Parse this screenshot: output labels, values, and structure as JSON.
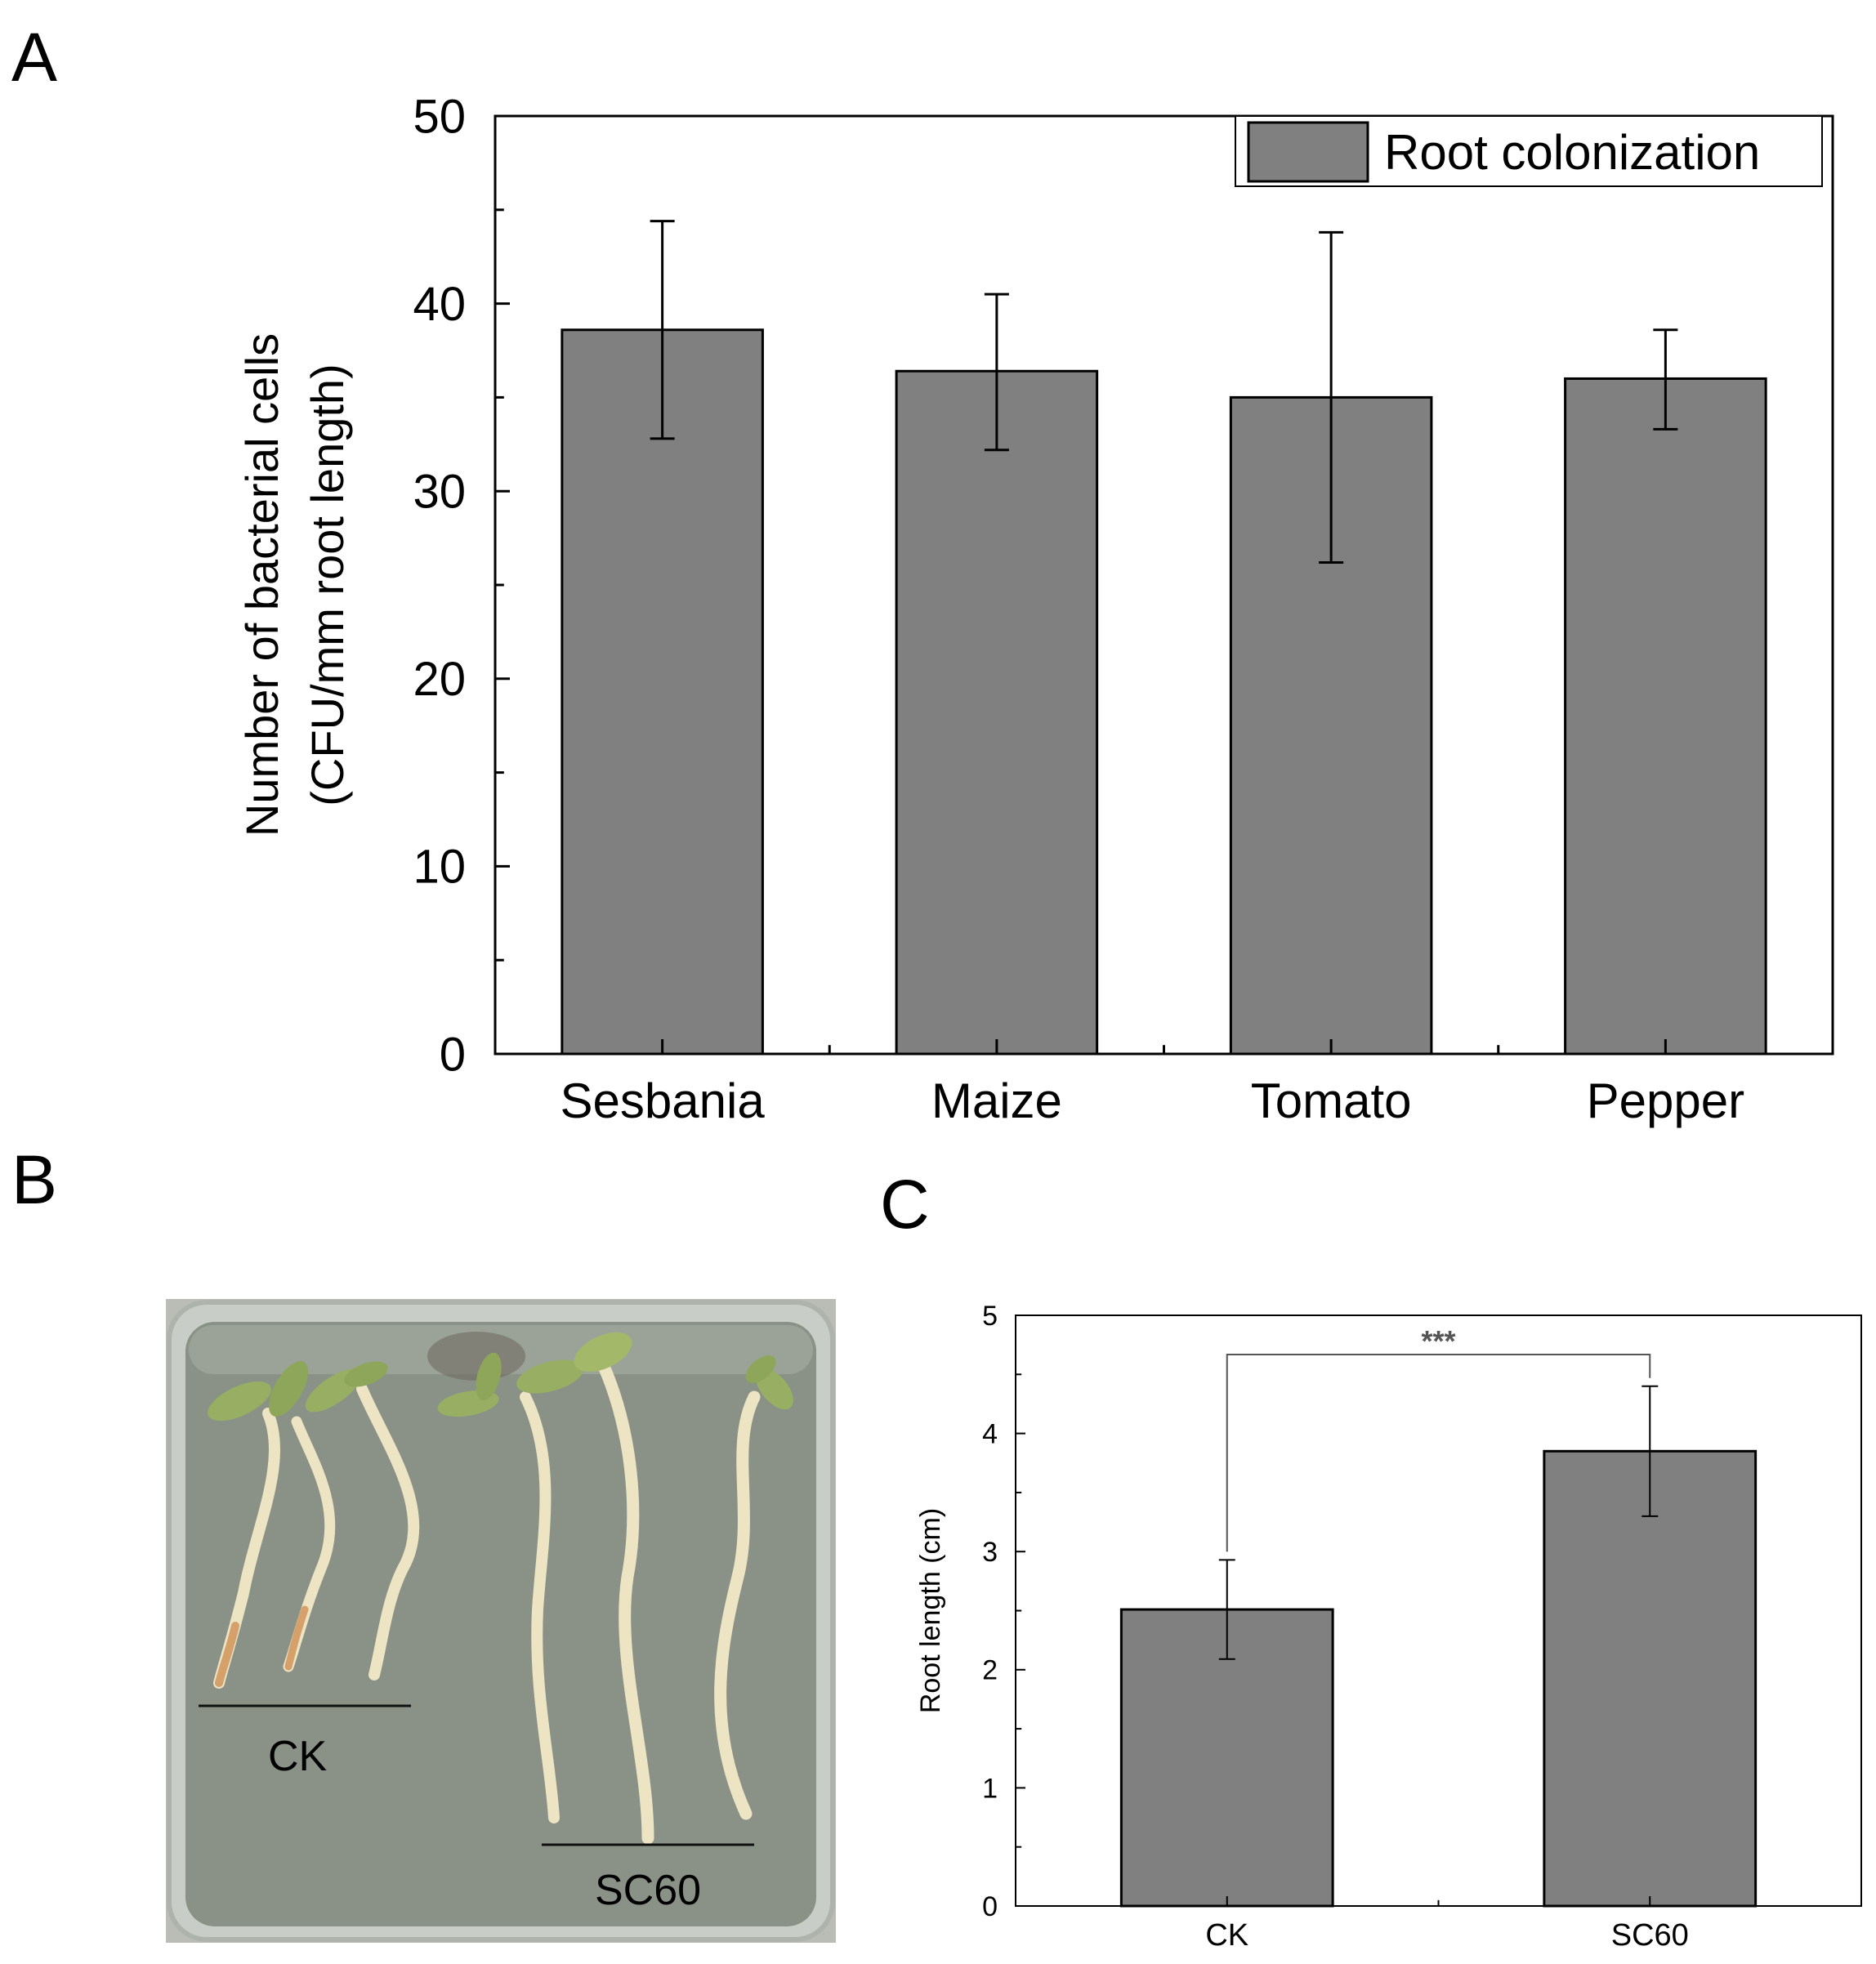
{
  "panel_labels": {
    "a": "A",
    "b": "B",
    "c": "C"
  },
  "photo": {
    "group_labels": [
      "CK",
      "SC60"
    ],
    "colors": {
      "agar": "#8a9287",
      "tray_rim": "#c9cdc7",
      "root": "#ece4c2",
      "root_tip": "#d6a06a",
      "leaf": "#98ae62"
    }
  },
  "chart_data": [
    {
      "type": "bar",
      "title": "",
      "categories": [
        "Sesbania",
        "Maize",
        "Tomato",
        "Pepper"
      ],
      "series": [
        {
          "name": "Root colonization",
          "values": [
            38.6,
            36.4,
            35.0,
            36.0
          ],
          "error_low": [
            32.8,
            32.2,
            26.2,
            33.3
          ],
          "error_high": [
            44.4,
            40.5,
            43.8,
            38.6
          ],
          "color": "#808080"
        }
      ],
      "ylabel": [
        "Number of bacterial cells",
        "(CFU/mm root length)"
      ],
      "xlabel": "",
      "ylim": [
        0,
        50
      ],
      "yticks": [
        0,
        10,
        20,
        30,
        40,
        50
      ],
      "ytick_labels": [
        "0",
        "10",
        "20",
        "30",
        "40",
        "50"
      ],
      "grid": false,
      "legend_position": "top-right"
    },
    {
      "type": "bar",
      "title": "",
      "categories": [
        "CK",
        "SC60"
      ],
      "series": [
        {
          "values": [
            2.51,
            3.85
          ],
          "error_low": [
            2.09,
            3.3
          ],
          "error_high": [
            2.93,
            4.4
          ],
          "color": "#808080"
        }
      ],
      "ylabel": "Root length (cm)",
      "xlabel": "",
      "ylim": [
        0,
        5
      ],
      "yticks": [
        0,
        1,
        2,
        3,
        4,
        5
      ],
      "ytick_labels": [
        "0",
        "1",
        "2",
        "3",
        "4",
        "5"
      ],
      "grid": false,
      "annotation": {
        "text": "***",
        "between": [
          "CK",
          "SC60"
        ]
      }
    }
  ]
}
